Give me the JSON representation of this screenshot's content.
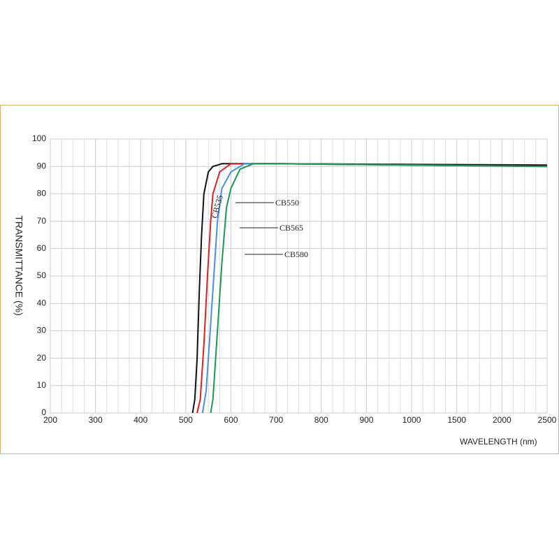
{
  "chart_data": {
    "type": "line",
    "x_label": "WAVELENGTH (nm)",
    "y_label": "TRANSMITTANCE  (%)",
    "x_scale": "piecewise",
    "xlim": [
      200,
      2500
    ],
    "xticks": [
      200,
      300,
      400,
      500,
      600,
      700,
      800,
      900,
      1000,
      1500,
      2000,
      2500
    ],
    "ylim": [
      0,
      100
    ],
    "yticks": [
      0,
      10,
      20,
      30,
      40,
      50,
      60,
      70,
      80,
      90,
      100
    ],
    "grid": true,
    "series": [
      {
        "name": "CB535",
        "color": "#111111",
        "x": [
          515,
          520,
          525,
          530,
          535,
          540,
          550,
          560,
          580,
          700,
          2500
        ],
        "values": [
          0,
          5,
          20,
          45,
          65,
          80,
          88,
          90,
          91,
          91,
          90.5
        ]
      },
      {
        "name": "CB550",
        "color": "#e02020",
        "x": [
          525,
          532,
          540,
          548,
          555,
          560,
          575,
          600,
          700,
          2500
        ],
        "values": [
          0,
          5,
          25,
          50,
          70,
          80,
          88,
          91,
          91,
          90
        ]
      },
      {
        "name": "CB565",
        "color": "#4a90e0",
        "x": [
          537,
          545,
          552,
          560,
          570,
          580,
          600,
          630,
          700,
          2500
        ],
        "values": [
          0,
          8,
          25,
          45,
          70,
          82,
          88,
          91,
          91,
          90
        ]
      },
      {
        "name": "CB580",
        "color": "#1a9a50",
        "x": [
          555,
          560,
          570,
          580,
          590,
          600,
          620,
          650,
          700,
          2500
        ],
        "values": [
          0,
          5,
          30,
          55,
          75,
          82,
          89,
          91,
          91,
          90
        ]
      }
    ]
  }
}
